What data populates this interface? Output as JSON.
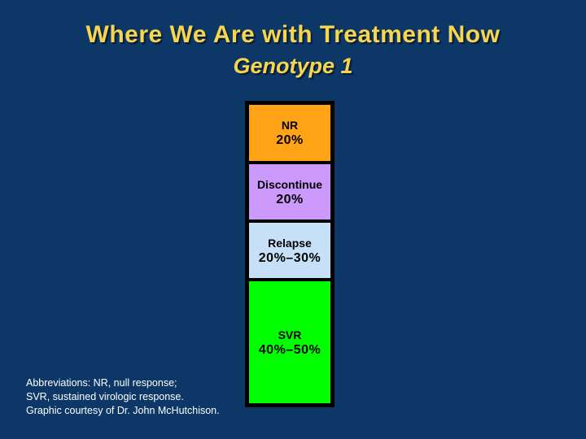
{
  "slide": {
    "title": "Where We Are with Treatment Now",
    "subtitle": "Genotype 1",
    "footnote_lines": [
      "Abbreviations: NR, null response;",
      "SVR, sustained virologic response.",
      "Graphic courtesy of Dr. John McHutchison."
    ]
  },
  "colors": {
    "background": "#0c3766",
    "title_text": "#f7d64f",
    "bar_border": "#000000",
    "segment_text": "#000000",
    "footnote_text": "#ffffff"
  },
  "chart_data": {
    "type": "bar",
    "subtype": "stacked_single_vertical_bar",
    "title": "Where We Are with Treatment Now",
    "subtitle": "Genotype 1",
    "unit": "percent of patients",
    "axes": false,
    "grid": false,
    "legend": false,
    "segments": [
      {
        "label": "NR",
        "value_label": "20%",
        "value_pct": 20,
        "value_pct_range": [
          20,
          20
        ],
        "color": "#ffa317"
      },
      {
        "label": "Discontinue",
        "value_label": "20%",
        "value_pct": 20,
        "value_pct_range": [
          20,
          20
        ],
        "color": "#cc99fc"
      },
      {
        "label": "Relapse",
        "value_label": "20%–30%",
        "value_pct": 25,
        "value_pct_range": [
          20,
          30
        ],
        "color": "#c6e1f7"
      },
      {
        "label": "SVR",
        "value_label": "40%–50%",
        "value_pct": 45,
        "value_pct_range": [
          40,
          50
        ],
        "color": "#00ff00"
      }
    ]
  }
}
